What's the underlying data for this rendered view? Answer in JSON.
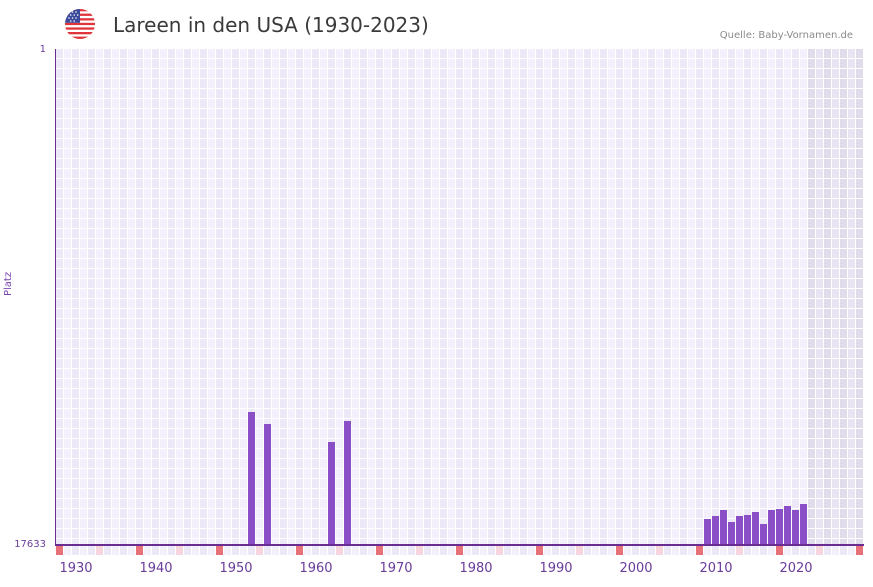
{
  "header": {
    "title": "Lareen in den USA (1930-2023)",
    "source": "Quelle: Baby-Vornamen.de",
    "flag_icon": "us-flag-icon"
  },
  "colors": {
    "bar": "#8a4fc7",
    "axis": "#6a2c91",
    "grid_a": "#ece8f8",
    "grid_b": "#f3f0fc",
    "future_a": "#e1dcec",
    "future_b": "#e8e4f1",
    "decade_marker": "#e8707a",
    "half_decade_marker": "#f5d6de",
    "label": "#6a3d9a"
  },
  "chart_data": {
    "type": "bar",
    "title": "Lareen in den USA (1930-2023)",
    "xlabel": "",
    "ylabel": "Platz",
    "y_inverted": true,
    "ylim": [
      1,
      17633
    ],
    "xlim": [
      1928,
      2028
    ],
    "yticks": [
      "1",
      "17633"
    ],
    "xticks": [
      "1930",
      "1940",
      "1950",
      "1960",
      "1970",
      "1980",
      "1990",
      "2000",
      "2010",
      "2020"
    ],
    "grid": true,
    "shaded_future_from": 2022,
    "x": [
      1952,
      1954,
      1962,
      1964,
      2009,
      2010,
      2011,
      2012,
      2013,
      2014,
      2015,
      2016,
      2017,
      2018,
      2019,
      2020,
      2021
    ],
    "values": [
      12905,
      13332,
      13971,
      13225,
      16709,
      16602,
      16389,
      16815,
      16602,
      16567,
      16460,
      16886,
      16389,
      16353,
      16247,
      16389,
      16176
    ]
  },
  "axis": {
    "ylabel": "Platz",
    "ytick_top": "1",
    "ytick_bottom": "17633"
  }
}
